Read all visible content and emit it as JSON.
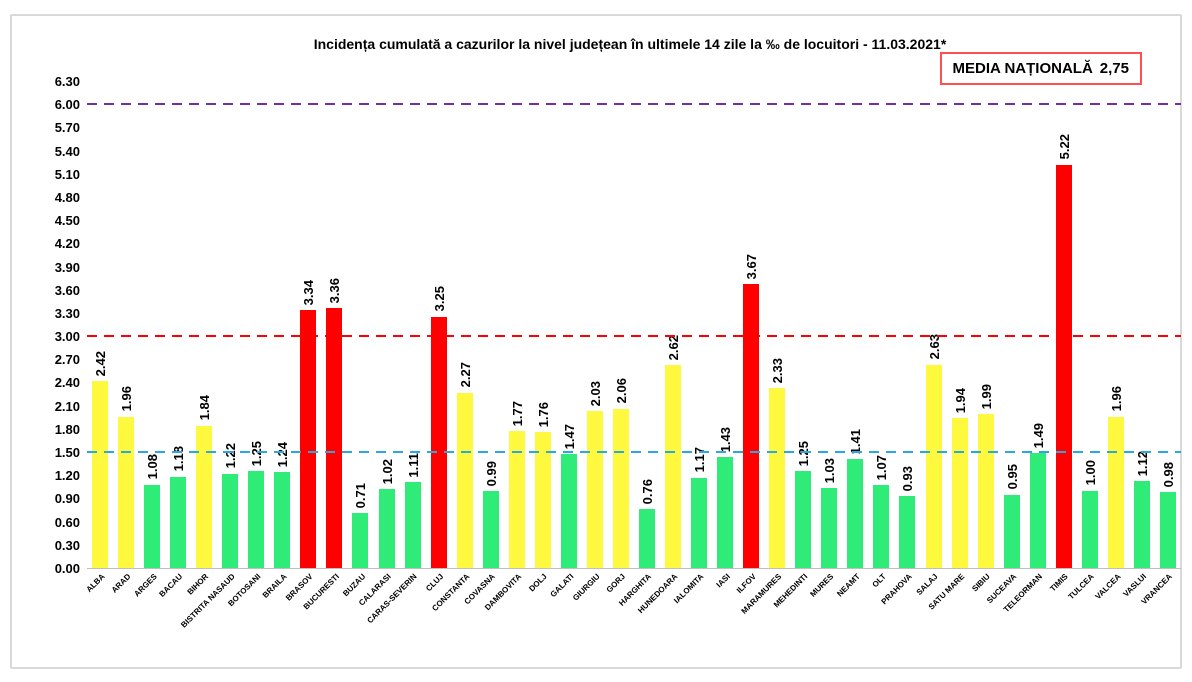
{
  "header": {
    "title": "Incidența cumulată a cazurilor la nivel județean în ultimele 14 zile la ‰ de locuitori - 11.03.2021*",
    "national_average": {
      "label": "MEDIA NAȚIONALĂ",
      "value": "2,75",
      "box_border_color": "#ff5050"
    }
  },
  "chart_data": {
    "type": "bar",
    "title": "Incidența cumulată a cazurilor la nivel județean în ultimele 14 zile la ‰ de locuitori - 11.03.2021*",
    "xlabel": "",
    "ylabel": "",
    "ylim": [
      0,
      6.3
    ],
    "y_tick_step": 0.3,
    "y_ticks": [
      "0.00",
      "0.30",
      "0.60",
      "0.90",
      "1.20",
      "1.50",
      "1.80",
      "2.10",
      "2.40",
      "2.70",
      "3.00",
      "3.30",
      "3.60",
      "3.90",
      "4.20",
      "4.50",
      "4.80",
      "5.10",
      "5.40",
      "5.70",
      "6.00",
      "6.30"
    ],
    "grid": false,
    "legend_position": "none",
    "value_label_format": "2-decimals",
    "colors": {
      "green": "#2eec77",
      "yellow": "#fef93f",
      "red": "#fe0000"
    },
    "reference_lines": [
      {
        "y": 1.5,
        "color": "#2ca8e0"
      },
      {
        "y": 3.0,
        "color": "#ff0000"
      },
      {
        "y": 6.0,
        "color": "#7030a0"
      }
    ],
    "categories": [
      "ALBA",
      "ARAD",
      "ARGES",
      "BACAU",
      "BIHOR",
      "BISTRITA NASAUD",
      "BOTOSANI",
      "BRAILA",
      "BRASOV",
      "BUCURESTI",
      "BUZAU",
      "CALARASI",
      "CARAS-SEVERIN",
      "CLUJ",
      "CONSTANTA",
      "COVASNA",
      "DAMBOVITA",
      "DOLJ",
      "GALATI",
      "GIURGIU",
      "GORJ",
      "HARGHITA",
      "HUNEDOARA",
      "IALOMITA",
      "IASI",
      "ILFOV",
      "MARAMURES",
      "MEHEDINTI",
      "MURES",
      "NEAMT",
      "OLT",
      "PRAHOVA",
      "SALAJ",
      "SATU MARE",
      "SIBIU",
      "SUCEAVA",
      "TELEORMAN",
      "TIMIS",
      "TULCEA",
      "VALCEA",
      "VASLUI",
      "VRANCEA"
    ],
    "values": [
      2.42,
      1.96,
      1.08,
      1.18,
      1.84,
      1.22,
      1.25,
      1.24,
      3.34,
      3.36,
      0.71,
      1.02,
      1.11,
      3.25,
      2.27,
      0.99,
      1.77,
      1.76,
      1.47,
      2.03,
      2.06,
      0.76,
      2.62,
      1.17,
      1.43,
      3.67,
      2.33,
      1.25,
      1.03,
      1.41,
      1.07,
      0.93,
      2.63,
      1.94,
      1.99,
      0.95,
      1.49,
      5.22,
      1.0,
      1.96,
      1.12,
      0.98
    ],
    "bar_colors": [
      "yellow",
      "yellow",
      "green",
      "green",
      "yellow",
      "green",
      "green",
      "green",
      "red",
      "red",
      "green",
      "green",
      "green",
      "red",
      "yellow",
      "green",
      "yellow",
      "yellow",
      "green",
      "yellow",
      "yellow",
      "green",
      "yellow",
      "green",
      "green",
      "red",
      "yellow",
      "green",
      "green",
      "green",
      "green",
      "green",
      "yellow",
      "yellow",
      "yellow",
      "green",
      "green",
      "red",
      "green",
      "yellow",
      "green",
      "green"
    ]
  }
}
